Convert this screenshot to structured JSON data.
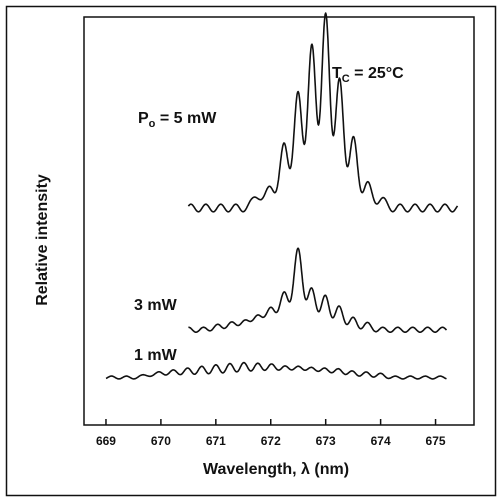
{
  "chart_data": {
    "type": "line",
    "xlabel": "Wavelength, λ (nm)",
    "ylabel": "Relative intensity",
    "xlim": [
      668.6,
      675.7
    ],
    "x_ticks": [
      "669",
      "670",
      "671",
      "672",
      "673",
      "674",
      "675"
    ],
    "y_ticks": [],
    "grid": false,
    "annotation": "T_C = 25°C",
    "annotation_main": "T",
    "annotation_sub": "C",
    "annotation_rest": " = 25°C",
    "series": [
      {
        "label": "P_o = 5 mW",
        "label_main": "P",
        "label_sub": "o",
        "label_rest": " = 5 mW",
        "x_start": 670.5,
        "x_end": 675.4,
        "baseline": 0.1,
        "ripple": 0.02,
        "peaks": [
          {
            "x": 671.75,
            "h": 0.07
          },
          {
            "x": 672.0,
            "h": 0.12
          },
          {
            "x": 672.25,
            "h": 0.34
          },
          {
            "x": 672.5,
            "h": 0.6
          },
          {
            "x": 672.75,
            "h": 0.84
          },
          {
            "x": 673.0,
            "h": 1.0
          },
          {
            "x": 673.25,
            "h": 0.66
          },
          {
            "x": 673.5,
            "h": 0.36
          },
          {
            "x": 673.75,
            "h": 0.13
          },
          {
            "x": 674.0,
            "h": 0.05
          }
        ]
      },
      {
        "label": "3 mW",
        "x_start": 670.5,
        "x_end": 675.2,
        "baseline": 0.05,
        "ripple": 0.015,
        "peaks": [
          {
            "x": 671.0,
            "h": 0.02
          },
          {
            "x": 671.25,
            "h": 0.04
          },
          {
            "x": 671.5,
            "h": 0.06
          },
          {
            "x": 671.75,
            "h": 0.1
          },
          {
            "x": 672.0,
            "h": 0.15
          },
          {
            "x": 672.25,
            "h": 0.24
          },
          {
            "x": 672.5,
            "h": 0.5
          },
          {
            "x": 672.75,
            "h": 0.25
          },
          {
            "x": 673.0,
            "h": 0.2
          },
          {
            "x": 673.25,
            "h": 0.13
          },
          {
            "x": 673.5,
            "h": 0.06
          },
          {
            "x": 673.75,
            "h": 0.03
          }
        ]
      },
      {
        "label": "1 mW",
        "x_start": 669.0,
        "x_end": 675.2,
        "baseline": 0.025,
        "ripple": 0.01,
        "peaks": [
          {
            "x": 669.75,
            "h": 0.02
          },
          {
            "x": 670.0,
            "h": 0.04
          },
          {
            "x": 670.25,
            "h": 0.05
          },
          {
            "x": 670.5,
            "h": 0.06
          },
          {
            "x": 670.75,
            "h": 0.07
          },
          {
            "x": 671.0,
            "h": 0.08
          },
          {
            "x": 671.25,
            "h": 0.09
          },
          {
            "x": 671.5,
            "h": 0.1
          },
          {
            "x": 671.75,
            "h": 0.1
          },
          {
            "x": 672.0,
            "h": 0.1
          },
          {
            "x": 672.25,
            "h": 0.09
          },
          {
            "x": 672.5,
            "h": 0.09
          },
          {
            "x": 672.75,
            "h": 0.08
          },
          {
            "x": 673.0,
            "h": 0.07
          },
          {
            "x": 673.25,
            "h": 0.06
          },
          {
            "x": 673.5,
            "h": 0.04
          },
          {
            "x": 673.75,
            "h": 0.03
          },
          {
            "x": 674.0,
            "h": 0.02
          }
        ]
      }
    ]
  }
}
